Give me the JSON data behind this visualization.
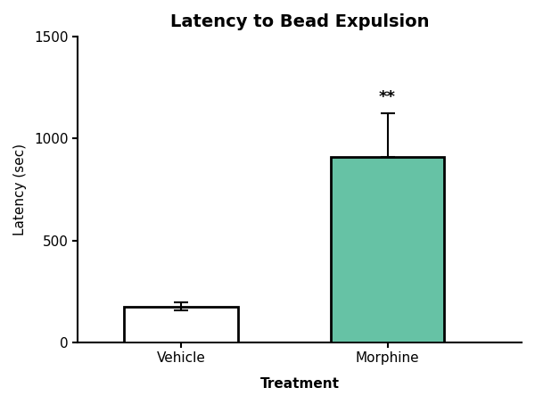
{
  "title": "Latency to Bead Expulsion",
  "xlabel": "Treatment",
  "ylabel": "Latency (sec)",
  "categories": [
    "Vehicle",
    "Morphine"
  ],
  "values": [
    175,
    910
  ],
  "errors_up": [
    20,
    215
  ],
  "errors_down": [
    20,
    0
  ],
  "bar_colors": [
    "#ffffff",
    "#66c2a5"
  ],
  "bar_edge_color": "#000000",
  "bar_edge_width": 2.0,
  "ylim": [
    0,
    1500
  ],
  "yticks": [
    0,
    500,
    1000,
    1500
  ],
  "significance_label": "**",
  "sig_bar_index": 1,
  "title_fontsize": 14,
  "label_fontsize": 11,
  "tick_fontsize": 11,
  "significance_fontsize": 13,
  "bar_width": 0.55,
  "error_cap_size": 6,
  "error_line_width": 1.5,
  "background_color": "#ffffff",
  "x_positions": [
    1,
    2
  ]
}
